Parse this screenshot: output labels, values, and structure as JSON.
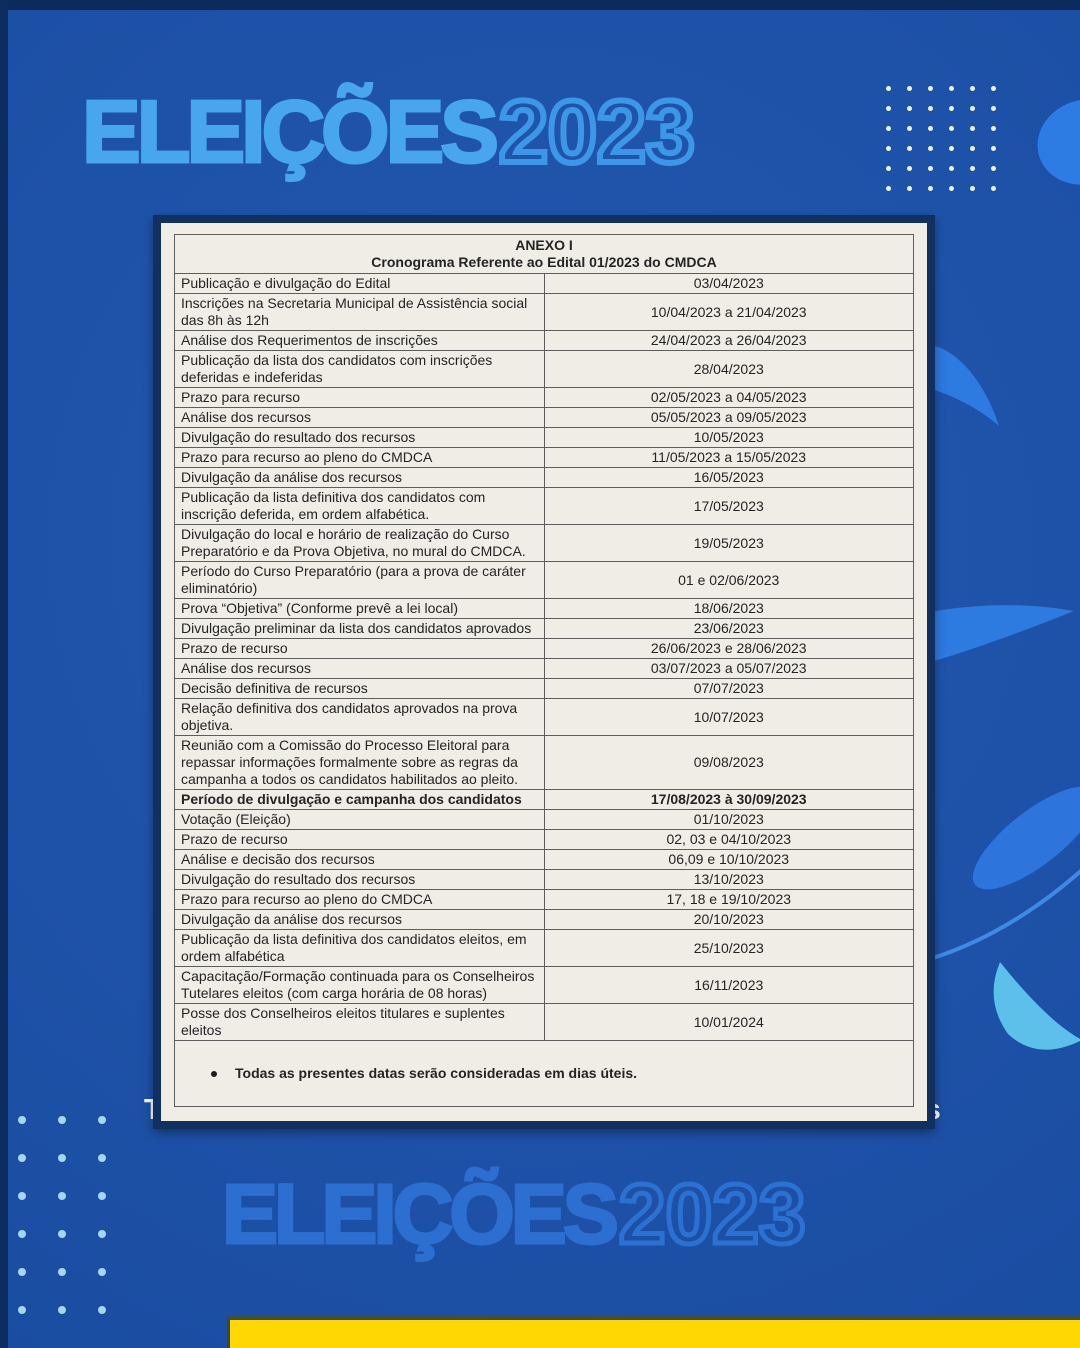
{
  "poster": {
    "title_top": {
      "word": "ELEIÇÕES",
      "year": "2023"
    },
    "watermark_bottom": {
      "word": "ELEIÇÕES",
      "year": "2023"
    },
    "note_outside": "Todas as presentes datas serão consideradas em dias úteis",
    "colors": {
      "background": "#1c53ae",
      "frame_navy": "#0d2c5f",
      "headline_fill": "#47a6ee",
      "headline_outline": "#3c97e8",
      "watermark_blue": "#2c6fd0",
      "paper": "#f0ede7",
      "yellow_band": "#ffd804",
      "dots_light": "#ecf6fd",
      "dots_blue": "#a6d7f2",
      "petal_blue": "#2d7ae1",
      "crescent_cyan": "#5cc0ea"
    },
    "decor": {
      "dots_top_right": {
        "cols": 6,
        "rows": 6
      },
      "dots_bottom_left": {
        "cols": 3,
        "rows": 6
      }
    }
  },
  "document": {
    "header_line1": "ANEXO I",
    "header_line2": "Cronograma Referente ao Edital 01/2023 do CMDCA",
    "rows": [
      {
        "activity": "Publicação e divulgação do Edital",
        "date": "03/04/2023"
      },
      {
        "activity": "Inscrições na Secretaria Municipal de Assistência social das 8h às 12h",
        "date": "10/04/2023 a 21/04/2023",
        "date_valign": "top"
      },
      {
        "activity": "Análise dos Requerimentos de inscrições",
        "date": "24/04/2023 a 26/04/2023"
      },
      {
        "activity": "Publicação da lista dos candidatos com inscrições deferidas e indeferidas",
        "date": "28/04/2023",
        "date_valign": "bottom"
      },
      {
        "activity": "Prazo para recurso",
        "date": "02/05/2023 a 04/05/2023"
      },
      {
        "activity": "Análise dos recursos",
        "date": "05/05/2023 a 09/05/2023"
      },
      {
        "activity": "Divulgação do resultado dos recursos",
        "date": "10/05/2023"
      },
      {
        "activity": "Prazo para recurso ao pleno do CMDCA",
        "date": "11/05/2023 a 15/05/2023"
      },
      {
        "activity": "Divulgação da análise dos recursos",
        "date": "16/05/2023"
      },
      {
        "activity": "Publicação da lista definitiva dos candidatos com inscrição deferida, em ordem alfabética.",
        "date": "17/05/2023",
        "date_valign": "bottom"
      },
      {
        "activity": "Divulgação do local e horário de realização do Curso Preparatório e da Prova Objetiva, no mural do CMDCA.",
        "date": "19/05/2023",
        "date_valign": "bottom"
      },
      {
        "activity": "Período do Curso Preparatório (para a prova de caráter eliminatório)",
        "date": "01 e 02/06/2023",
        "date_valign": "bottom"
      },
      {
        "activity": "Prova “Objetiva” (Conforme prevê a lei local)",
        "date": "18/06/2023"
      },
      {
        "activity": "Divulgação preliminar da lista dos candidatos aprovados",
        "date": "23/06/2023"
      },
      {
        "activity": "Prazo de recurso",
        "date": "26/06/2023 e 28/06/2023"
      },
      {
        "activity": "Análise dos recursos",
        "date": "03/07/2023 a 05/07/2023"
      },
      {
        "activity": "Decisão definitiva de recursos",
        "date": "07/07/2023"
      },
      {
        "activity": "Relação definitiva dos candidatos aprovados na prova objetiva.",
        "date": "10/07/2023",
        "date_valign": "bottom"
      },
      {
        "activity": "Reunião com a Comissão do Processo Eleitoral para repassar informações formalmente sobre as regras da campanha a todos os candidatos habilitados ao pleito.",
        "date": "09/08/2023",
        "date_valign": "top"
      },
      {
        "activity": "Período de divulgação e campanha dos candidatos",
        "date": "17/08/2023 à 30/09/2023",
        "bold": true
      },
      {
        "activity": "Votação (Eleição)",
        "date": "01/10/2023"
      },
      {
        "activity": "Prazo de recurso",
        "date": "02, 03 e 04/10/2023"
      },
      {
        "activity": "Análise e decisão dos recursos",
        "date": "06,09 e 10/10/2023"
      },
      {
        "activity": "Divulgação do resultado dos recursos",
        "date": "13/10/2023"
      },
      {
        "activity": "Prazo para recurso ao pleno do CMDCA",
        "date": "17, 18 e 19/10/2023"
      },
      {
        "activity": "Divulgação da análise dos recursos",
        "date": "20/10/2023"
      },
      {
        "activity": "Publicação da lista definitiva dos candidatos eleitos, em ordem alfabética",
        "date": "25/10/2023",
        "date_valign": "top"
      },
      {
        "activity": "Capacitação/Formação continuada para os Conselheiros Tutelares eleitos (com carga horária de 08 horas)",
        "date": "16/11/2023",
        "date_valign": "top"
      },
      {
        "activity": "Posse dos Conselheiros eleitos titulares e suplentes eleitos",
        "date": "10/01/2024"
      }
    ],
    "footnote": "Todas as presentes datas serão consideradas em dias úteis."
  }
}
